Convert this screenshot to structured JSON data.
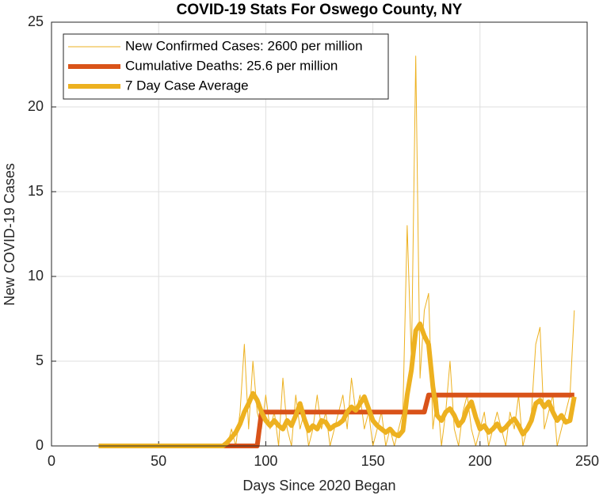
{
  "chart_data": {
    "type": "line",
    "title": "COVID-19 Stats For Oswego County, NY",
    "xlabel": "Days Since 2020 Began",
    "ylabel": "New COVID-19 Cases",
    "x": [
      22,
      24,
      26,
      28,
      30,
      32,
      34,
      36,
      38,
      40,
      42,
      44,
      46,
      48,
      50,
      52,
      54,
      56,
      58,
      60,
      62,
      64,
      66,
      68,
      70,
      72,
      74,
      76,
      78,
      80,
      82,
      84,
      86,
      88,
      90,
      92,
      94,
      96,
      98,
      100,
      102,
      104,
      106,
      108,
      110,
      112,
      114,
      116,
      118,
      120,
      122,
      124,
      126,
      128,
      130,
      132,
      134,
      136,
      138,
      140,
      142,
      144,
      146,
      148,
      150,
      152,
      154,
      156,
      158,
      160,
      162,
      164,
      166,
      168,
      170,
      172,
      174,
      176,
      178,
      180,
      182,
      184,
      186,
      188,
      190,
      192,
      194,
      196,
      198,
      200,
      202,
      204,
      206,
      208,
      210,
      212,
      214,
      216,
      218,
      220,
      222,
      224,
      226,
      228,
      230,
      232,
      234,
      236,
      238,
      240,
      242,
      244
    ],
    "series": [
      {
        "name": "New Confirmed Cases: 2600 per million",
        "color": "#EDB120",
        "width": 1,
        "values": [
          0,
          0,
          0,
          0,
          0,
          0,
          0,
          0,
          0,
          0,
          0,
          0,
          0,
          0,
          0,
          0,
          0,
          0,
          0,
          0,
          0,
          0,
          0,
          0,
          0,
          0,
          0,
          0,
          0,
          0,
          0,
          1,
          0,
          2,
          6,
          1,
          5,
          2,
          1,
          3,
          1,
          2,
          0,
          4,
          1,
          0,
          3,
          1,
          2,
          0,
          1,
          3,
          1,
          2,
          0,
          1,
          2,
          3,
          1,
          4,
          2,
          3,
          1,
          2,
          0,
          1,
          2,
          0,
          1,
          0,
          1,
          2,
          13,
          5,
          23,
          4,
          8,
          9,
          1,
          3,
          0,
          2,
          5,
          1,
          0,
          2,
          3,
          1,
          0,
          1,
          2,
          0,
          1,
          2,
          1,
          0,
          2,
          1,
          3,
          0,
          1,
          2,
          6,
          7,
          1,
          2,
          3,
          0,
          1,
          2,
          3,
          8
        ]
      },
      {
        "name": "Cumulative Deaths: 25.6 per million",
        "color": "#D95319",
        "width": 6,
        "values": [
          0,
          0,
          0,
          0,
          0,
          0,
          0,
          0,
          0,
          0,
          0,
          0,
          0,
          0,
          0,
          0,
          0,
          0,
          0,
          0,
          0,
          0,
          0,
          0,
          0,
          0,
          0,
          0,
          0,
          0,
          0,
          0,
          0,
          0,
          0,
          0,
          0,
          0,
          2,
          2,
          2,
          2,
          2,
          2,
          2,
          2,
          2,
          2,
          2,
          2,
          2,
          2,
          2,
          2,
          2,
          2,
          2,
          2,
          2,
          2,
          2,
          2,
          2,
          2,
          2,
          2,
          2,
          2,
          2,
          2,
          2,
          2,
          2,
          2,
          2,
          2,
          2,
          3,
          3,
          3,
          3,
          3,
          3,
          3,
          3,
          3,
          3,
          3,
          3,
          3,
          3,
          3,
          3,
          3,
          3,
          3,
          3,
          3,
          3,
          3,
          3,
          3,
          3,
          3,
          3,
          3,
          3,
          3,
          3,
          3,
          3,
          3
        ]
      },
      {
        "name": "7 Day Case Average",
        "color": "#EDB120",
        "width": 6,
        "values": [
          0,
          0,
          0,
          0,
          0,
          0,
          0,
          0,
          0,
          0,
          0,
          0,
          0,
          0,
          0,
          0,
          0,
          0,
          0,
          0,
          0,
          0,
          0,
          0,
          0,
          0,
          0,
          0,
          0,
          0,
          0.2,
          0.5,
          0.8,
          1.3,
          2.0,
          2.5,
          3.1,
          2.7,
          2.0,
          1.5,
          1.2,
          1.5,
          1.2,
          1.0,
          1.5,
          1.2,
          1.8,
          2.5,
          1.6,
          0.9,
          1.2,
          1.0,
          1.5,
          1.4,
          1.0,
          1.2,
          1.3,
          1.5,
          2.0,
          2.3,
          2.1,
          2.5,
          2.9,
          2.2,
          1.5,
          1.2,
          1.0,
          0.8,
          1.0,
          0.7,
          0.6,
          0.9,
          3.0,
          4.5,
          6.8,
          7.2,
          6.5,
          6.0,
          3.5,
          1.8,
          1.5,
          2.0,
          2.2,
          1.8,
          1.2,
          1.5,
          2.2,
          2.6,
          1.7,
          1.0,
          1.2,
          0.8,
          1.0,
          1.3,
          0.9,
          1.1,
          1.4,
          1.6,
          1.2,
          0.7,
          1.0,
          1.5,
          2.5,
          2.7,
          2.3,
          2.6,
          2.0,
          1.5,
          1.8,
          1.4,
          1.5,
          2.9
        ]
      }
    ],
    "xlim": [
      0,
      250
    ],
    "xticks": [
      0,
      50,
      100,
      150,
      200,
      250
    ],
    "ylim": [
      0,
      25
    ],
    "yticks": [
      0,
      5,
      10,
      15,
      20,
      25
    ],
    "grid": true,
    "legend": "upper left"
  }
}
